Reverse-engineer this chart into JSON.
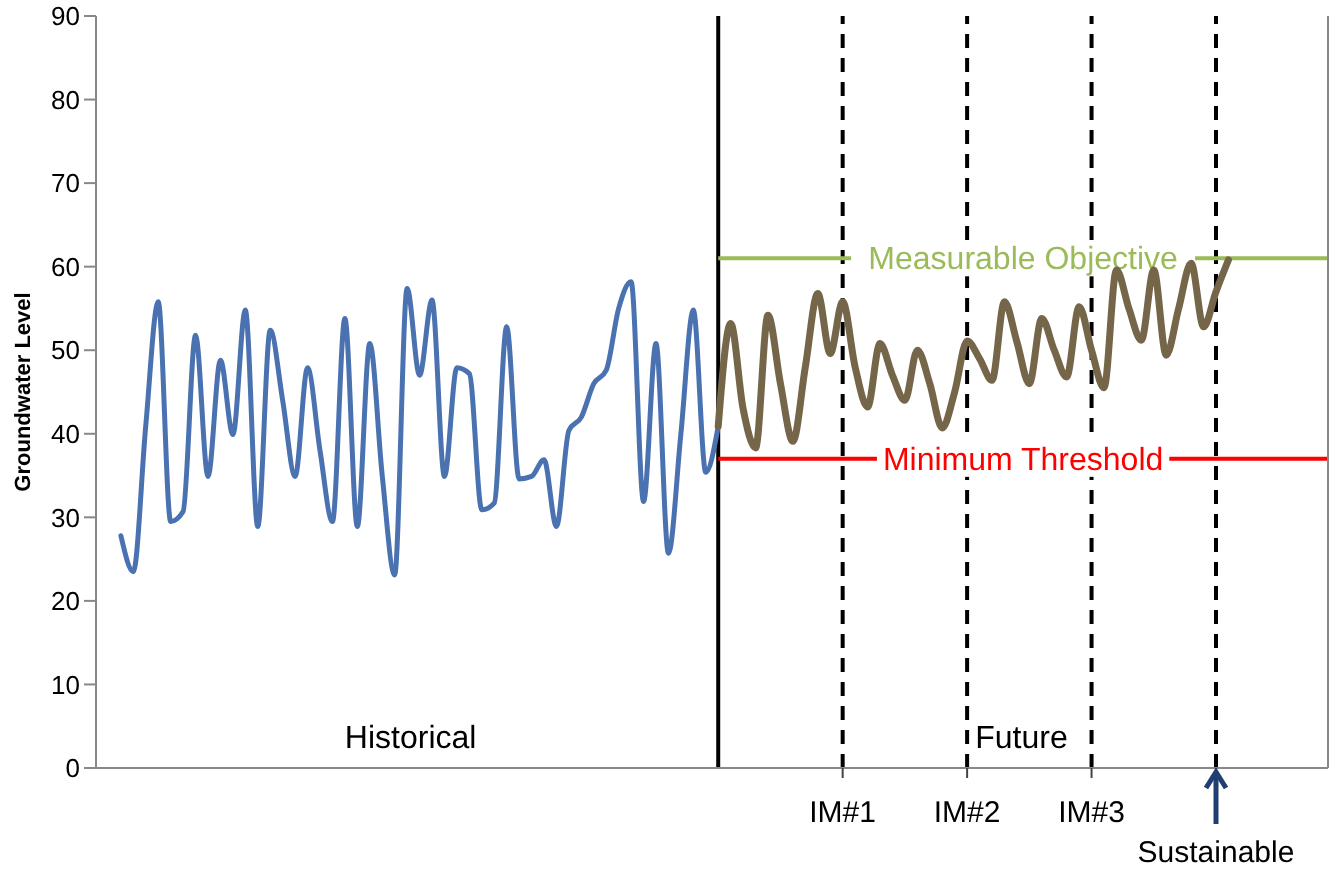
{
  "chart_data": {
    "type": "line",
    "ylabel": "Groundwater Level",
    "categories": [
      null,
      null,
      null,
      null,
      null,
      null,
      null,
      null,
      null,
      null,
      null,
      null,
      null,
      null,
      null,
      null,
      null,
      null,
      null,
      null,
      null,
      null,
      null,
      null,
      null,
      null,
      null,
      null,
      null,
      null,
      null,
      null,
      null,
      null,
      null,
      null,
      null,
      null,
      null,
      null,
      null,
      null,
      null,
      null,
      null,
      null,
      null,
      null,
      null,
      null,
      null,
      null,
      null,
      null,
      null,
      null,
      null,
      null,
      null,
      null,
      "IM#1",
      null,
      null,
      null,
      null,
      null,
      null,
      null,
      null,
      null,
      "IM#2",
      null,
      null,
      null,
      null,
      null,
      null,
      null,
      null,
      null,
      "IM#3",
      null,
      null,
      null,
      null,
      null,
      null,
      null,
      null,
      null,
      "Sustainable",
      null,
      null,
      null,
      null,
      null,
      null,
      null,
      null,
      null
    ],
    "ylim": [
      0,
      90
    ],
    "yticks": [
      0,
      10,
      20,
      30,
      40,
      50,
      60,
      70,
      80,
      90
    ],
    "series": [
      {
        "color": "#4a72b0",
        "values": [
          null,
          null,
          27.8,
          23.5,
          41,
          55.8,
          29.5,
          30.7,
          51.8,
          34.9,
          48.8,
          39.9,
          54.8,
          28.9,
          52.4,
          44,
          34.9,
          47.9,
          38,
          29.5,
          53.8,
          28.9,
          50.8,
          35,
          23.1,
          57.4,
          47.0,
          56.0,
          34.9,
          47.9,
          47.2,
          30.9,
          31.7,
          52.8,
          34.6,
          34.9,
          36.9,
          28.9,
          40.4,
          42.0,
          46.0,
          47.6,
          55,
          58.2,
          31.9,
          50.8,
          25.7,
          40,
          54.8,
          35.4,
          40.9,
          null,
          null,
          null,
          null,
          null,
          null,
          null,
          null,
          null,
          null,
          null,
          null,
          null,
          null,
          null,
          null,
          null,
          null,
          null,
          null,
          null,
          null,
          null,
          null,
          null,
          null,
          null,
          null,
          null,
          null,
          null,
          null,
          null,
          null,
          null,
          null,
          null,
          null,
          null,
          null,
          null,
          null,
          null,
          null,
          null,
          null,
          null,
          null,
          null
        ]
      },
      {
        "color": "#75664a",
        "values": [
          null,
          null,
          null,
          null,
          null,
          null,
          null,
          null,
          null,
          null,
          null,
          null,
          null,
          null,
          null,
          null,
          null,
          null,
          null,
          null,
          null,
          null,
          null,
          null,
          null,
          null,
          null,
          null,
          null,
          null,
          null,
          null,
          null,
          null,
          null,
          null,
          null,
          null,
          null,
          null,
          null,
          null,
          null,
          null,
          null,
          null,
          null,
          null,
          null,
          null,
          40.9,
          53.2,
          43,
          38.3,
          54.2,
          46,
          39.1,
          48,
          56.8,
          49.6,
          55.8,
          48,
          43.2,
          50.8,
          47,
          44.0,
          50.0,
          46,
          40.7,
          45,
          51.1,
          49,
          46.4,
          55.8,
          51,
          46.0,
          53.8,
          50,
          46.8,
          55.2,
          50,
          45.5,
          59.6,
          55,
          51.2,
          59.6,
          49.4,
          55,
          60.4,
          52.8,
          57,
          60.8,
          null,
          null,
          null,
          null,
          null,
          null,
          null,
          null
        ]
      }
    ],
    "ref_lines": [
      {
        "axis": "x",
        "value": "IM#1",
        "color": "#000000",
        "line_style": "dashed"
      },
      {
        "axis": "x",
        "value": "IM#2",
        "color": "#000000",
        "line_style": "dashed"
      },
      {
        "axis": "x",
        "value": "IM#3",
        "color": "#000000",
        "line_style": "dashed"
      },
      {
        "axis": "x",
        "value": "Sustainable",
        "color": "#000000",
        "line_style": "dashed"
      },
      {
        "axis": "y",
        "value": 61,
        "label": "Measurable Objective",
        "color": "#9bbb59",
        "line_style": "solid"
      },
      {
        "axis": "y",
        "value": 37,
        "label": "Minimum Threshold",
        "color": "#ff0000",
        "line_style": "solid"
      }
    ],
    "annotations": [
      "Historical",
      "Future"
    ]
  }
}
